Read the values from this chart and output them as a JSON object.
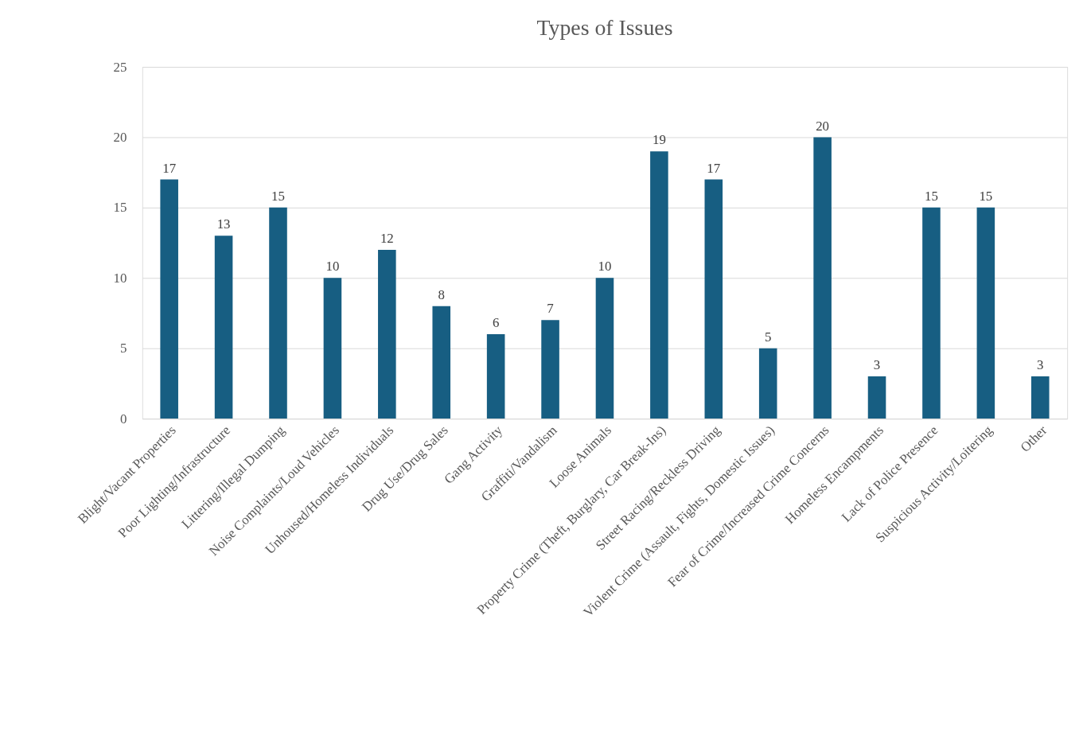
{
  "chart_data": {
    "type": "bar",
    "title": "Types of Issues",
    "categories": [
      "Blight/Vacant Properties",
      "Poor Lighting/Infrastructure",
      "Littering/Illegal Dumping",
      "Noise Complaints/Loud Vehicles",
      "Unhoused/Homeless Individuals",
      "Drug Use/Drug Sales",
      "Gang Activity",
      "Graffiti/Vandalism",
      "Loose Animals",
      "Property Crime (Theft, Burglary, Car Break-Ins)",
      "Street Racing/Reckless Driving",
      "Violent Crime (Assault, Fights, Domestic Issues)",
      "Fear of Crime/Increased Crime Concerns",
      "Homeless Encampments",
      "Lack of Police Presence",
      "Suspicious Activity/Loitering",
      "Other"
    ],
    "values": [
      17,
      13,
      15,
      10,
      12,
      8,
      6,
      7,
      10,
      19,
      17,
      5,
      20,
      3,
      15,
      15,
      3
    ],
    "color": "#175e82",
    "ylim": [
      0,
      25
    ],
    "yticks": [
      0,
      5,
      10,
      15,
      20,
      25
    ],
    "grid": "y",
    "data_labels": true
  }
}
